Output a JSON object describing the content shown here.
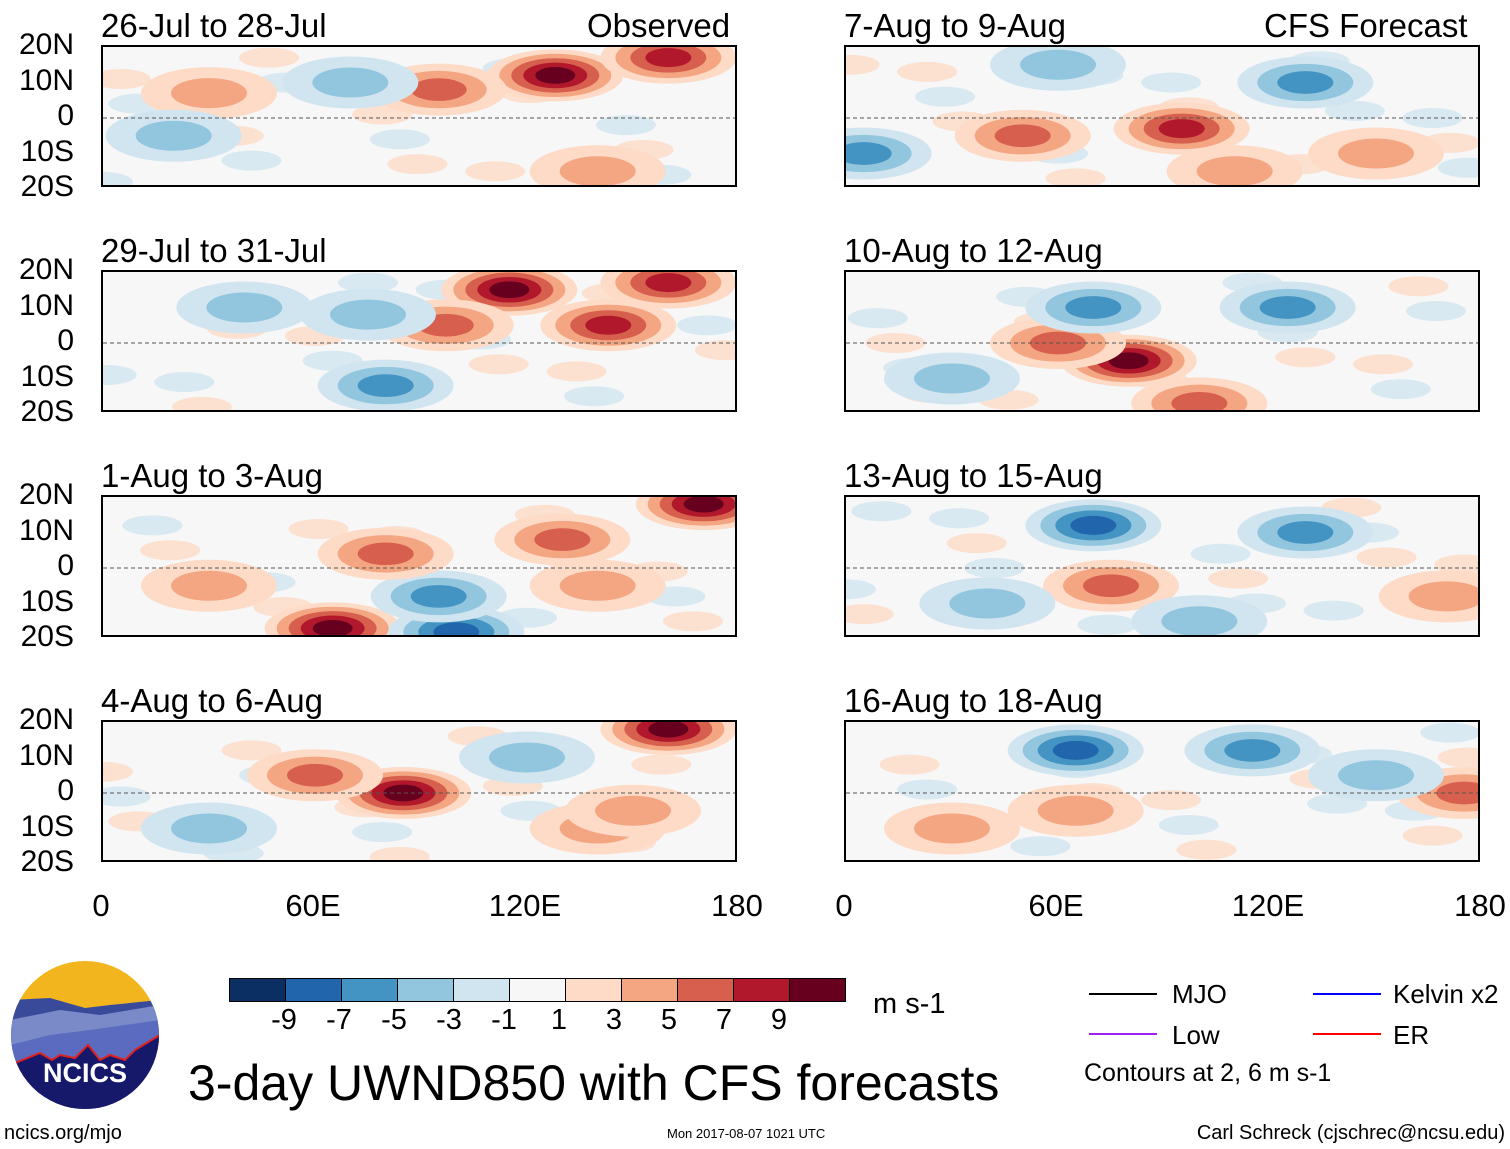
{
  "header": {
    "left_label": "Observed",
    "right_label": "CFS Forecast"
  },
  "title": "3-day UWND850 with CFS forecasts",
  "units": "m s-1",
  "footer": {
    "url": "ncics.org/mjo",
    "timestamp": "Mon 2017-08-07 1021 UTC",
    "author": "Carl Schreck (cjschrec@ncsu.edu)",
    "logo_text": "NCICS"
  },
  "legend": {
    "items": [
      {
        "label": "MJO",
        "color": "#000000"
      },
      {
        "label": "Kelvin x2",
        "color": "#0000ff"
      },
      {
        "label": "Low",
        "color": "#a020f0"
      },
      {
        "label": "ER",
        "color": "#ff0000"
      }
    ],
    "note": "Contours at 2, 6 m s-1"
  },
  "chart_data": {
    "type": "heatmap",
    "variable": "850-hPa zonal wind anomaly, 3-day mean",
    "xlim": [
      0,
      180
    ],
    "ylim": [
      -20,
      20
    ],
    "x_ticks": [
      "0",
      "60E",
      "120E",
      "180"
    ],
    "y_ticks": [
      "20N",
      "10N",
      "0",
      "10S",
      "20S"
    ],
    "colorbar": {
      "ticks": [
        "-9",
        "-7",
        "-5",
        "-3",
        "-1",
        "1",
        "3",
        "5",
        "7",
        "9"
      ],
      "colors": [
        "#0b2f63",
        "#2166ac",
        "#4393c3",
        "#92c5de",
        "#d1e5f0",
        "#f7f7f7",
        "#fddbc7",
        "#f4a582",
        "#d6604d",
        "#b2182b",
        "#67001f"
      ]
    },
    "panels": [
      {
        "title": "26-Jul to 28-Jul",
        "features": [
          [
            128,
            12,
            9
          ],
          [
            160,
            17,
            7
          ],
          [
            95,
            8,
            5
          ],
          [
            70,
            10,
            -3
          ],
          [
            30,
            7,
            3
          ],
          [
            140,
            -15,
            3
          ],
          [
            20,
            -5,
            -3
          ]
        ]
      },
      {
        "title": "29-Jul to 31-Jul",
        "features": [
          [
            115,
            15,
            9
          ],
          [
            143,
            5,
            7
          ],
          [
            97,
            5,
            5
          ],
          [
            80,
            -12,
            -5
          ],
          [
            75,
            8,
            -3
          ],
          [
            160,
            17,
            7
          ],
          [
            40,
            10,
            -3
          ]
        ]
      },
      {
        "title": "1-Aug to 3-Aug",
        "features": [
          [
            170,
            18,
            9
          ],
          [
            65,
            -17,
            9
          ],
          [
            100,
            -18,
            -7
          ],
          [
            95,
            -8,
            -5
          ],
          [
            80,
            4,
            5
          ],
          [
            130,
            8,
            5
          ],
          [
            30,
            -5,
            3
          ],
          [
            140,
            -5,
            3
          ]
        ]
      },
      {
        "title": "4-Aug to 6-Aug",
        "features": [
          [
            85,
            0,
            9
          ],
          [
            160,
            18,
            9
          ],
          [
            60,
            5,
            5
          ],
          [
            120,
            10,
            -3
          ],
          [
            140,
            -10,
            3
          ],
          [
            30,
            -10,
            -3
          ],
          [
            150,
            -5,
            3
          ]
        ]
      },
      {
        "title": "7-Aug to 9-Aug",
        "features": [
          [
            95,
            -3,
            7
          ],
          [
            50,
            -5,
            5
          ],
          [
            130,
            10,
            -5
          ],
          [
            5,
            -10,
            -5
          ],
          [
            150,
            -10,
            3
          ],
          [
            60,
            15,
            -3
          ],
          [
            110,
            -15,
            3
          ]
        ]
      },
      {
        "title": "10-Aug to 12-Aug",
        "features": [
          [
            80,
            -5,
            9
          ],
          [
            60,
            0,
            5
          ],
          [
            70,
            10,
            -5
          ],
          [
            125,
            10,
            -5
          ],
          [
            100,
            -17,
            5
          ],
          [
            30,
            -10,
            -3
          ]
        ]
      },
      {
        "title": "13-Aug to 15-Aug",
        "features": [
          [
            70,
            12,
            -7
          ],
          [
            130,
            10,
            -5
          ],
          [
            75,
            -5,
            5
          ],
          [
            170,
            -8,
            3
          ],
          [
            40,
            -10,
            -3
          ],
          [
            100,
            -15,
            -3
          ]
        ]
      },
      {
        "title": "16-Aug to 18-Aug",
        "features": [
          [
            65,
            12,
            -7
          ],
          [
            115,
            12,
            -5
          ],
          [
            65,
            -5,
            3
          ],
          [
            175,
            0,
            5
          ],
          [
            30,
            -10,
            3
          ],
          [
            150,
            5,
            -3
          ]
        ]
      }
    ]
  }
}
